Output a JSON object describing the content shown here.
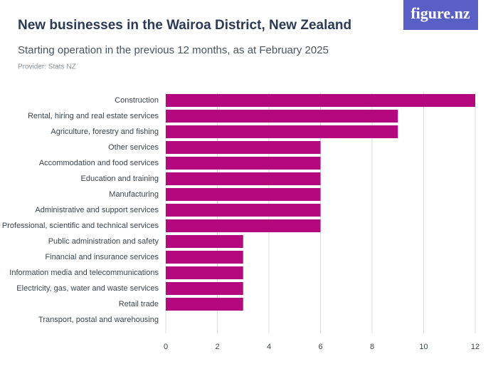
{
  "logo": "figure.nz",
  "chart_data": {
    "type": "bar",
    "orientation": "horizontal",
    "title": "New businesses in the Wairoa District, New Zealand",
    "subtitle": "Starting operation in the previous 12 months, as at February 2025",
    "provider": "Provider: Stats NZ",
    "categories": [
      "Construction",
      "Rental, hiring and real estate services",
      "Agriculture, forestry and fishing",
      "Other services",
      "Accommodation and food services",
      "Education and training",
      "Manufacturing",
      "Administrative and support services",
      "Professional, scientific and technical services",
      "Public administration and safety",
      "Financial and insurance services",
      "Information media and telecommunications",
      "Electricity, gas, water and waste services",
      "Retail trade",
      "Transport, postal and warehousing"
    ],
    "values": [
      12,
      9,
      9,
      6,
      6,
      6,
      6,
      6,
      6,
      3,
      3,
      3,
      3,
      3,
      0
    ],
    "color": "#b3087e",
    "xlim": [
      0,
      12
    ],
    "xticks": [
      0,
      2,
      4,
      6,
      8,
      10,
      12
    ],
    "grid": true
  }
}
